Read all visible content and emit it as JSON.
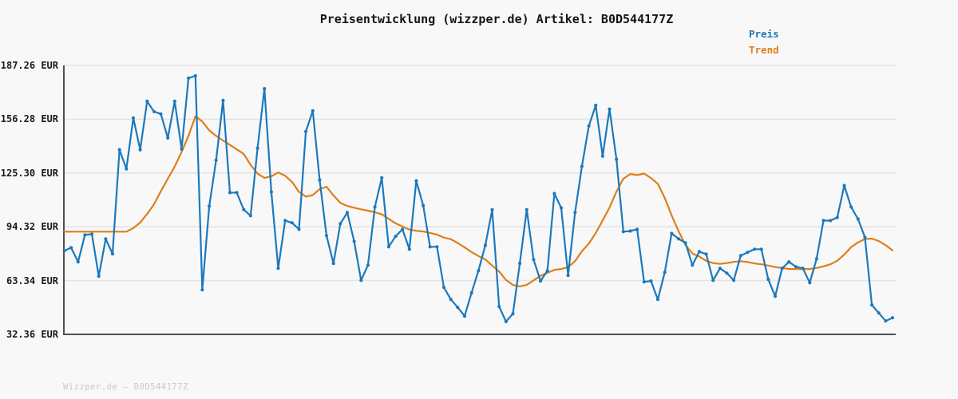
{
  "header": {
    "title": "Preisentwicklung (wizzper.de) Artikel: B0D544177Z"
  },
  "legend": [
    {
      "label": "Preis",
      "color": "#1b79bd"
    },
    {
      "label": "Trend",
      "color": "#de7e1a"
    }
  ],
  "watermark": "Wizzper.de — B0D544177Z",
  "colors": {
    "background": "#f8f8f8",
    "gridline": "#e4e4e4",
    "axis": "#4f4f4f",
    "price_line": "#1b79bd",
    "trend_line": "#de7e1a",
    "tick_text": "#1a1a1a",
    "title_text": "#151515",
    "watermark_text": "#c9c9c9"
  },
  "chart_data": {
    "type": "line",
    "title": "Preisentwicklung (wizzper.de) Artikel: B0D544177Z",
    "xlabel": "",
    "ylabel": "EUR",
    "ylim": [
      32.36,
      187.26
    ],
    "grid": true,
    "legend_position": "top-right",
    "xticks": [],
    "yticks": [
      {
        "value": 187.26,
        "label": "187.26 EUR"
      },
      {
        "value": 156.28,
        "label": "156.28 EUR"
      },
      {
        "value": 125.3,
        "label": "125.30 EUR"
      },
      {
        "value": 94.32,
        "label": "94.32 EUR"
      },
      {
        "value": 63.34,
        "label": "63.34 EUR"
      },
      {
        "value": 32.36,
        "label": "32.36 EUR"
      }
    ],
    "x_unit": "day-index (no axis labels shown)",
    "series": [
      {
        "name": "Preis",
        "color": "#1b79bd",
        "markers": true,
        "values": [
          80.5,
          82.3,
          74.1,
          89.7,
          90.1,
          65.8,
          87.4,
          78.7,
          138.7,
          127.7,
          157.0,
          138.7,
          166.6,
          160.7,
          159.3,
          145.5,
          166.6,
          139.1,
          179.9,
          181.3,
          58.0,
          106.2,
          132.7,
          167.1,
          114.0,
          114.0,
          104.2,
          100.7,
          139.6,
          173.9,
          114.4,
          70.4,
          97.9,
          96.6,
          92.9,
          149.2,
          161.1,
          121.3,
          89.2,
          73.2,
          96.1,
          102.5,
          86.0,
          63.5,
          72.2,
          105.7,
          122.6,
          82.8,
          88.8,
          92.9,
          81.4,
          120.8,
          106.6,
          82.8,
          82.8,
          59.4,
          52.5,
          47.9,
          42.9,
          56.2,
          69.0,
          83.6,
          104.2,
          48.4,
          39.7,
          44.2,
          73.2,
          104.2,
          75.4,
          63.1,
          69.0,
          113.5,
          105.2,
          66.3,
          102.5,
          129.1,
          152.4,
          164.3,
          135.0,
          162.1,
          133.2,
          91.5,
          91.9,
          92.9,
          62.6,
          63.1,
          52.5,
          68.1,
          90.5,
          87.4,
          85.1,
          72.2,
          80.0,
          78.6,
          63.5,
          70.4,
          67.6,
          63.5,
          77.7,
          79.6,
          81.4,
          81.4,
          64.0,
          54.3,
          70.4,
          74.1,
          71.3,
          70.4,
          62.1,
          75.9,
          97.9,
          97.9,
          99.7,
          118.1,
          105.7,
          98.8,
          88.3,
          49.3,
          44.7,
          40.1,
          41.9
        ]
      },
      {
        "name": "Trend",
        "color": "#de7e1a",
        "markers": false,
        "values": [
          91.5,
          91.5,
          91.5,
          91.5,
          91.5,
          91.5,
          91.5,
          91.5,
          91.5,
          91.5,
          93.6,
          96.7,
          101.7,
          107.3,
          114.8,
          122.0,
          129.0,
          137.5,
          146.7,
          158.0,
          155.0,
          149.8,
          146.7,
          144.0,
          141.5,
          138.9,
          136.3,
          130.0,
          125.0,
          122.5,
          123.4,
          125.6,
          123.7,
          120.2,
          114.4,
          111.7,
          112.6,
          116.0,
          117.4,
          112.4,
          108.1,
          106.3,
          105.3,
          104.4,
          103.6,
          102.7,
          101.5,
          98.9,
          96.3,
          94.5,
          92.7,
          92.0,
          91.6,
          90.8,
          89.8,
          88.1,
          87.2,
          85.0,
          82.4,
          79.8,
          77.5,
          75.5,
          72.0,
          68.6,
          63.7,
          60.8,
          60.0,
          60.9,
          63.5,
          66.1,
          67.8,
          69.5,
          70.0,
          71.0,
          74.5,
          80.2,
          84.6,
          90.7,
          98.0,
          105.4,
          114.6,
          122.0,
          124.7,
          124.1,
          125.0,
          122.4,
          119.1,
          110.9,
          100.9,
          91.8,
          83.9,
          78.9,
          77.2,
          74.7,
          73.4,
          73.0,
          73.4,
          74.1,
          74.5,
          74.0,
          73.2,
          72.7,
          72.0,
          71.1,
          70.6,
          70.0,
          70.0,
          70.0,
          70.0,
          70.6,
          71.5,
          72.7,
          74.8,
          78.3,
          82.6,
          85.3,
          87.3,
          87.5,
          86.1,
          83.7,
          80.7
        ]
      }
    ]
  }
}
